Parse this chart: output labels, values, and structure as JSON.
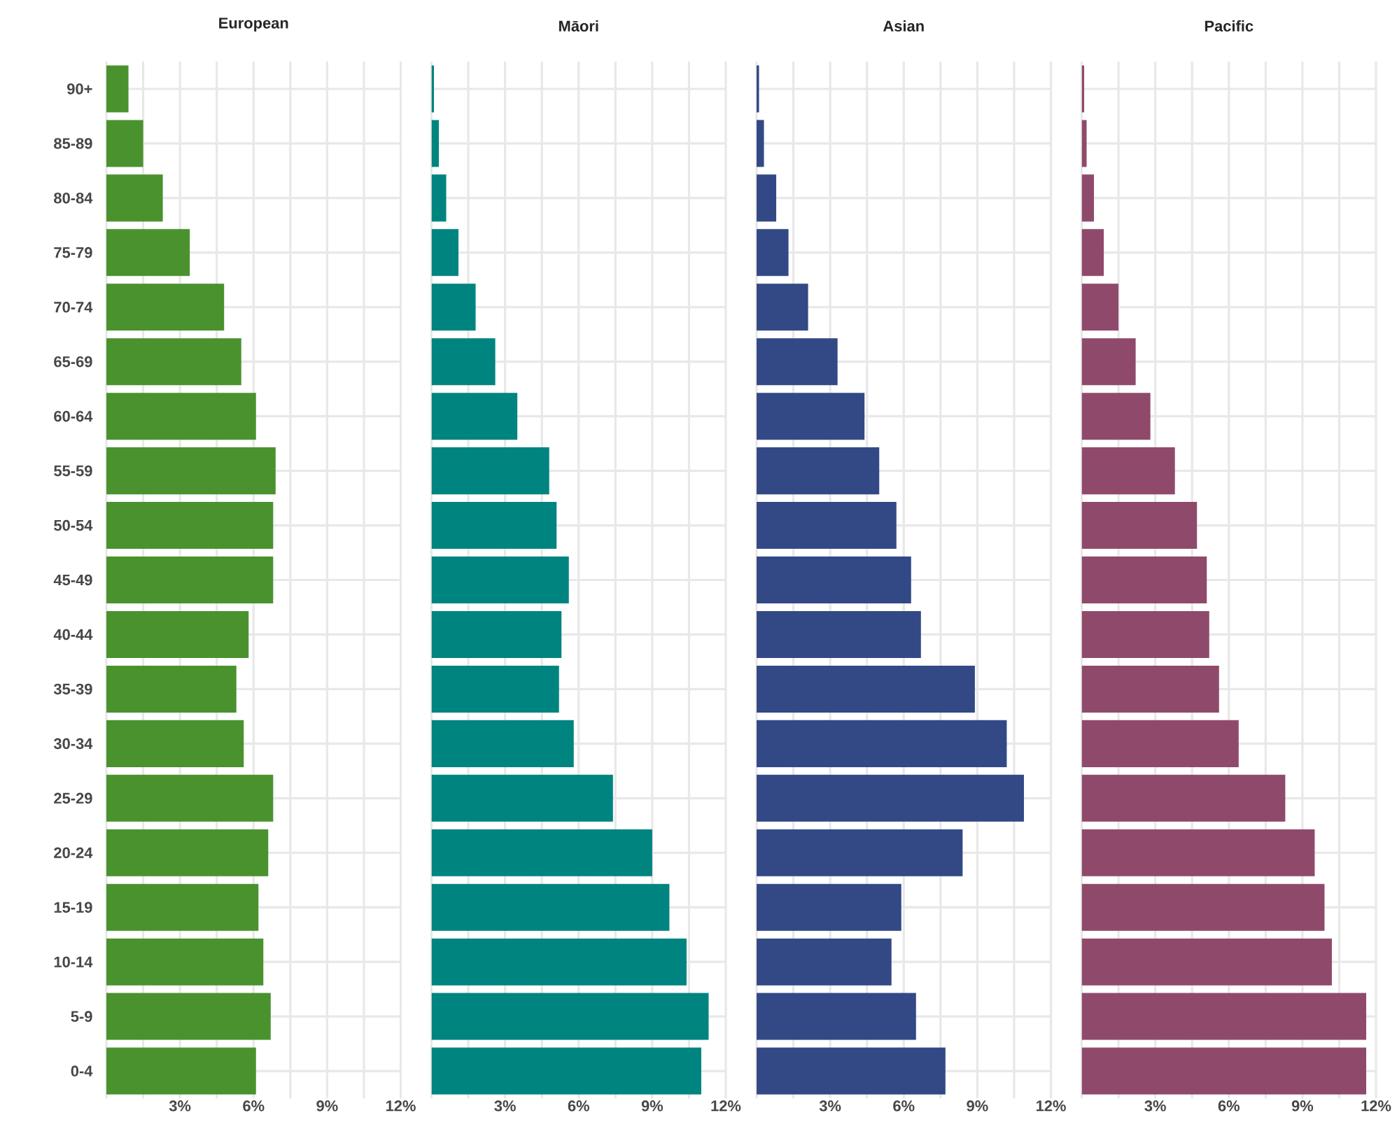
{
  "chart_data": [
    {
      "type": "bar",
      "orientation": "horizontal",
      "title": "European",
      "color": "#4a922e",
      "grid": true,
      "categories": [
        "90+",
        "85-89",
        "80-84",
        "75-79",
        "70-74",
        "65-69",
        "60-64",
        "55-59",
        "50-54",
        "45-49",
        "40-44",
        "35-39",
        "30-34",
        "25-29",
        "20-24",
        "15-19",
        "10-14",
        "5-9",
        "0-4"
      ],
      "values": [
        0.9,
        1.5,
        2.3,
        3.4,
        4.8,
        5.5,
        6.1,
        6.9,
        6.8,
        6.8,
        5.8,
        5.3,
        5.6,
        6.8,
        6.6,
        6.2,
        6.4,
        6.7,
        6.1
      ],
      "xlim": [
        0,
        12
      ],
      "xticks": [
        {
          "value": 0,
          "label": null
        },
        {
          "value": 1.5,
          "label": null
        },
        {
          "value": 3,
          "label": "3%"
        },
        {
          "value": 4.5,
          "label": null
        },
        {
          "value": 6,
          "label": "6%"
        },
        {
          "value": 7.5,
          "label": null
        },
        {
          "value": 9,
          "label": "9%"
        },
        {
          "value": 10.5,
          "label": null
        },
        {
          "value": 12,
          "label": "12%"
        }
      ]
    },
    {
      "type": "bar",
      "orientation": "horizontal",
      "title": "Māori",
      "color": "#00847f",
      "grid": true,
      "tick_labels": "x",
      "categories": [
        null,
        null,
        null,
        null,
        null,
        null,
        null,
        null,
        null,
        null,
        null,
        null,
        null,
        null,
        null,
        null,
        null,
        null,
        null
      ],
      "values": [
        0.1,
        0.3,
        0.6,
        1.1,
        1.8,
        2.6,
        3.5,
        4.8,
        5.1,
        5.6,
        5.3,
        5.2,
        5.8,
        7.4,
        9.0,
        9.7,
        10.4,
        11.3,
        11.0
      ],
      "xlim": [
        0,
        12
      ],
      "xticks": [
        {
          "value": 0,
          "label": null
        },
        {
          "value": 1.5,
          "label": null
        },
        {
          "value": 3,
          "label": "3%"
        },
        {
          "value": 4.5,
          "label": null
        },
        {
          "value": 6,
          "label": "6%"
        },
        {
          "value": 7.5,
          "label": null
        },
        {
          "value": 9,
          "label": "9%"
        },
        {
          "value": 10.5,
          "label": null
        },
        {
          "value": 12,
          "label": "12%"
        }
      ]
    },
    {
      "type": "bar",
      "orientation": "horizontal",
      "title": "Asian",
      "color": "#324986",
      "grid": true,
      "tick_labels": "x",
      "categories": [
        null,
        null,
        null,
        null,
        null,
        null,
        null,
        null,
        null,
        null,
        null,
        null,
        null,
        null,
        null,
        null,
        null,
        null,
        null
      ],
      "values": [
        0.1,
        0.3,
        0.8,
        1.3,
        2.1,
        3.3,
        4.4,
        5.0,
        5.7,
        6.3,
        6.7,
        8.9,
        10.2,
        10.9,
        8.4,
        5.9,
        5.5,
        6.5,
        7.7
      ],
      "xlim": [
        0,
        12
      ],
      "xticks": [
        {
          "value": 0,
          "label": null
        },
        {
          "value": 1.5,
          "label": null
        },
        {
          "value": 3,
          "label": "3%"
        },
        {
          "value": 4.5,
          "label": null
        },
        {
          "value": 6,
          "label": "6%"
        },
        {
          "value": 7.5,
          "label": null
        },
        {
          "value": 9,
          "label": "9%"
        },
        {
          "value": 10.5,
          "label": null
        },
        {
          "value": 12,
          "label": "12%"
        }
      ]
    },
    {
      "type": "bar",
      "orientation": "horizontal",
      "title": "Pacific",
      "color": "#8f4a6b",
      "grid": true,
      "tick_labels": "x",
      "categories": [
        null,
        null,
        null,
        null,
        null,
        null,
        null,
        null,
        null,
        null,
        null,
        null,
        null,
        null,
        null,
        null,
        null,
        null,
        null
      ],
      "values": [
        0.1,
        0.2,
        0.5,
        0.9,
        1.5,
        2.2,
        2.8,
        3.8,
        4.7,
        5.1,
        5.2,
        5.6,
        6.4,
        8.3,
        9.5,
        9.9,
        10.2,
        11.6,
        11.6
      ],
      "xlim": [
        0,
        12
      ],
      "xticks": [
        {
          "value": 0,
          "label": null
        },
        {
          "value": 1.5,
          "label": null
        },
        {
          "value": 3,
          "label": "3%"
        },
        {
          "value": 4.5,
          "label": null
        },
        {
          "value": 6,
          "label": "6%"
        },
        {
          "value": 7.5,
          "label": null
        },
        {
          "value": 9,
          "label": "9%"
        },
        {
          "value": 10.5,
          "label": null
        },
        {
          "value": 12,
          "label": "12%"
        }
      ]
    }
  ]
}
